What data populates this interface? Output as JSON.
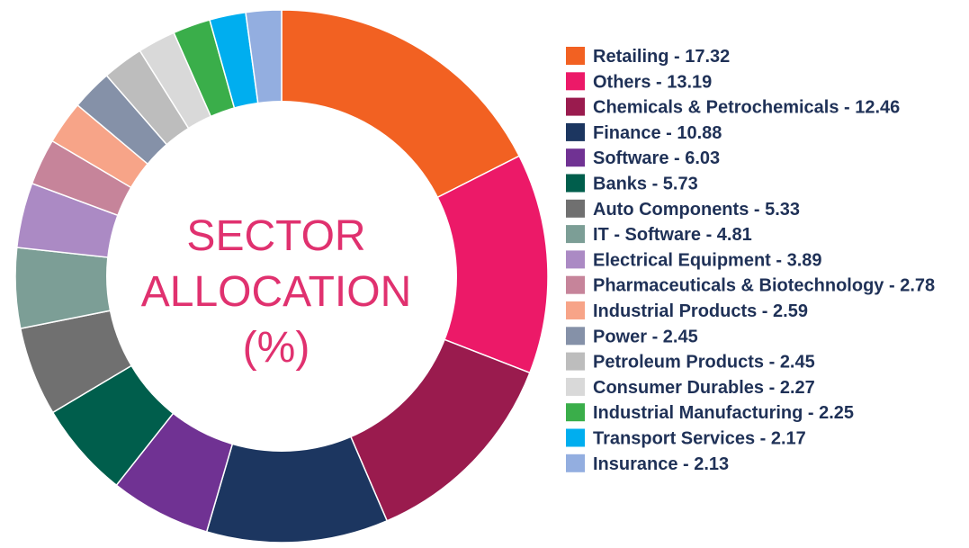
{
  "chart_data": {
    "type": "pie",
    "variant": "donut",
    "title_lines": [
      "SECTOR",
      "ALLOCATION",
      "(%)"
    ],
    "legend_placement": "right",
    "slices": [
      {
        "label": "Retailing - 17.32",
        "value": 17.32,
        "color": "#f26122"
      },
      {
        "label": "Others - 13.19",
        "value": 13.19,
        "color": "#ec1968"
      },
      {
        "label": "Chemicals & Petrochemicals - 12.46",
        "value": 12.46,
        "color": "#9a1b4e"
      },
      {
        "label": "Finance - 10.88",
        "value": 10.88,
        "color": "#1c3660"
      },
      {
        "label": "Software - 6.03",
        "value": 6.03,
        "color": "#703293"
      },
      {
        "label": "Banks - 5.73",
        "value": 5.73,
        "color": "#005e4c"
      },
      {
        "label": "Auto Components - 5.33",
        "value": 5.33,
        "color": "#707070"
      },
      {
        "label": "IT - Software - 4.81",
        "value": 4.81,
        "color": "#7c9e96"
      },
      {
        "label": "Electrical Equipment - 3.89",
        "value": 3.89,
        "color": "#ab8ac4"
      },
      {
        "label": "Pharmaceuticals & Biotechnology - 2.78",
        "value": 2.78,
        "color": "#c6849a"
      },
      {
        "label": "Industrial Products - 2.59",
        "value": 2.59,
        "color": "#f7a488"
      },
      {
        "label": "Power - 2.45",
        "value": 2.45,
        "color": "#8591a8"
      },
      {
        "label": "Petroleum Products - 2.45",
        "value": 2.45,
        "color": "#bdbdbd"
      },
      {
        "label": "Consumer Durables - 2.27",
        "value": 2.27,
        "color": "#d9d9d9"
      },
      {
        "label": "Industrial Manufacturing - 2.25",
        "value": 2.25,
        "color": "#3aae4a"
      },
      {
        "label": "Transport Services - 2.17",
        "value": 2.17,
        "color": "#00aeef"
      },
      {
        "label": "Insurance - 2.13",
        "value": 2.13,
        "color": "#93aee0"
      }
    ]
  }
}
